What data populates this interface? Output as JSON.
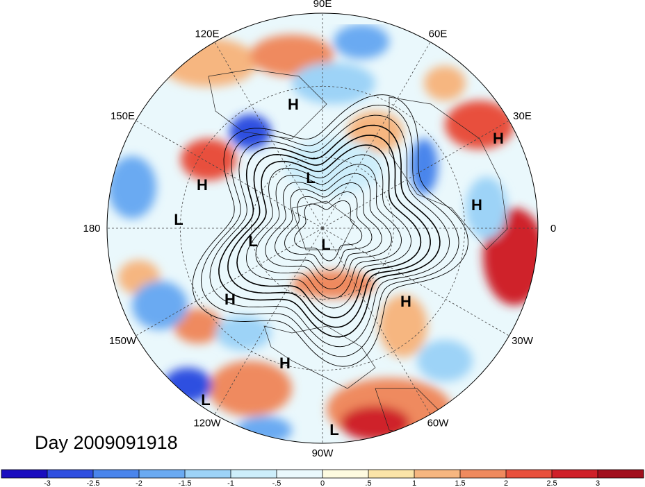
{
  "date_label": "Day 2009091918",
  "longitude_labels": [
    {
      "text": "90E",
      "angle": 90
    },
    {
      "text": "60E",
      "angle": 60
    },
    {
      "text": "30E",
      "angle": 30
    },
    {
      "text": "0",
      "angle": 0
    },
    {
      "text": "30W",
      "angle": -30
    },
    {
      "text": "60W",
      "angle": -60
    },
    {
      "text": "90W",
      "angle": -90
    },
    {
      "text": "120W",
      "angle": -120
    },
    {
      "text": "150W",
      "angle": -150
    },
    {
      "text": "180",
      "angle": 180
    },
    {
      "text": "150E",
      "angle": 150
    },
    {
      "text": "120E",
      "angle": 120
    }
  ],
  "pressure_centers": [
    {
      "label": "H"
    },
    {
      "label": "H"
    },
    {
      "label": "H"
    },
    {
      "label": "H"
    },
    {
      "label": "H"
    },
    {
      "label": "H"
    },
    {
      "label": "H"
    },
    {
      "label": "L"
    },
    {
      "label": "L"
    },
    {
      "label": "L"
    },
    {
      "label": "L"
    },
    {
      "label": "L"
    },
    {
      "label": "L"
    }
  ],
  "colorbar": {
    "colors": [
      "#1a0dbf",
      "#2f4fe0",
      "#4a85ec",
      "#6aaaf2",
      "#9dd3f7",
      "#cdeefb",
      "#eaf8fc",
      "#fefbe0",
      "#fbe4a8",
      "#f6b680",
      "#ef8a5e",
      "#e8503c",
      "#cf2029",
      "#a10f1d"
    ],
    "tick_labels": [
      "-3",
      "-2.5",
      "-2",
      "-1.5",
      "-1",
      "-.5",
      "0",
      ".5",
      "1",
      "1.5",
      "2",
      "2.5",
      "3"
    ]
  }
}
